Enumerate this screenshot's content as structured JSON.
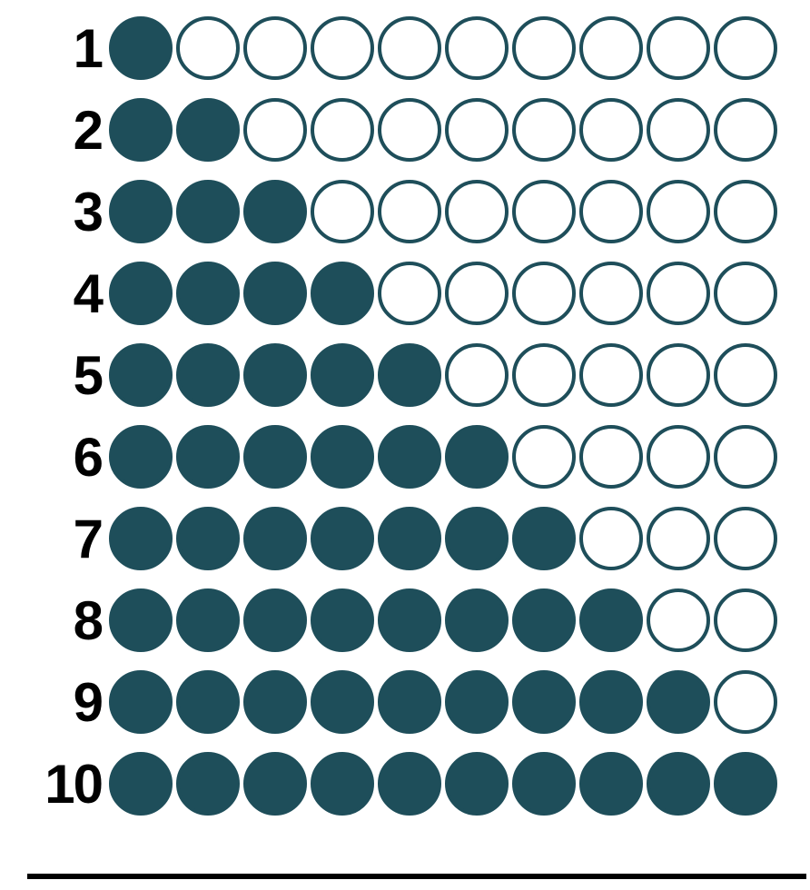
{
  "chart": {
    "type": "dot-grid",
    "row_count": 10,
    "dots_per_row": 10,
    "labels": [
      "1",
      "2",
      "3",
      "4",
      "5",
      "6",
      "7",
      "8",
      "9",
      "10"
    ],
    "filled_counts": [
      1,
      2,
      3,
      4,
      5,
      6,
      7,
      8,
      9,
      10
    ],
    "dot_diameter": 70,
    "dot_gap": 4,
    "row_gap": 20,
    "label_fontsize": 60,
    "label_font_weight": 900,
    "label_color": "#000000",
    "fill_color": "#1e4e5a",
    "stroke_color": "#1e4e5a",
    "empty_fill_color": "#ffffff",
    "stroke_width": 4,
    "background_color": "#ffffff",
    "divider_color": "#000000",
    "divider_thickness": 6
  }
}
